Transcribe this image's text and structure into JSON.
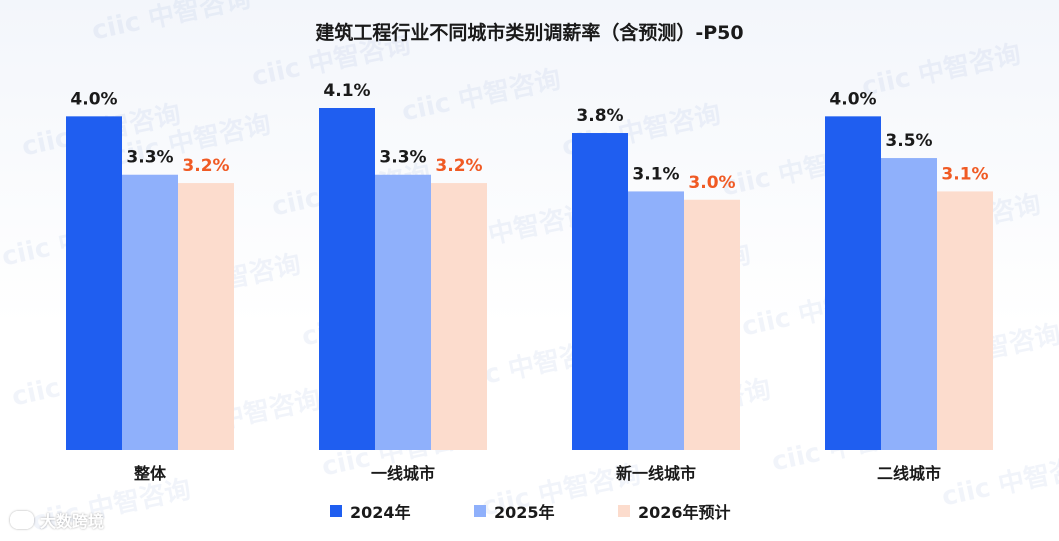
{
  "chart_data": {
    "type": "bar",
    "title": "建筑工程行业不同城市类别调薪率（含预测）-P50",
    "categories": [
      "整体",
      "一线城市",
      "新一线城市",
      "二线城市"
    ],
    "series": [
      {
        "name": "2024年",
        "values": [
          4.0,
          4.1,
          3.8,
          4.0
        ],
        "labels": [
          "4.0%",
          "4.1%",
          "3.8%",
          "4.0%"
        ],
        "color": "#1f5ef0",
        "label_color": "#1a1a1a"
      },
      {
        "name": "2025年",
        "values": [
          3.3,
          3.3,
          3.1,
          3.5
        ],
        "labels": [
          "3.3%",
          "3.3%",
          "3.1%",
          "3.5%"
        ],
        "color": "#8fb0fb",
        "label_color": "#1a1a1a"
      },
      {
        "name": "2026年预计",
        "values": [
          3.2,
          3.2,
          3.0,
          3.1
        ],
        "labels": [
          "3.2%",
          "3.2%",
          "3.0%",
          "3.1%"
        ],
        "color": "#fcdccd",
        "label_color": "#f05a24"
      }
    ],
    "ylim": [
      0,
      4.1
    ],
    "grid": false,
    "legend_position": "bottom-center"
  },
  "watermark": {
    "text": "ciic 中智咨询"
  },
  "brand": {
    "text": "大数跨境",
    "icon": "chat-bubble-icon"
  }
}
